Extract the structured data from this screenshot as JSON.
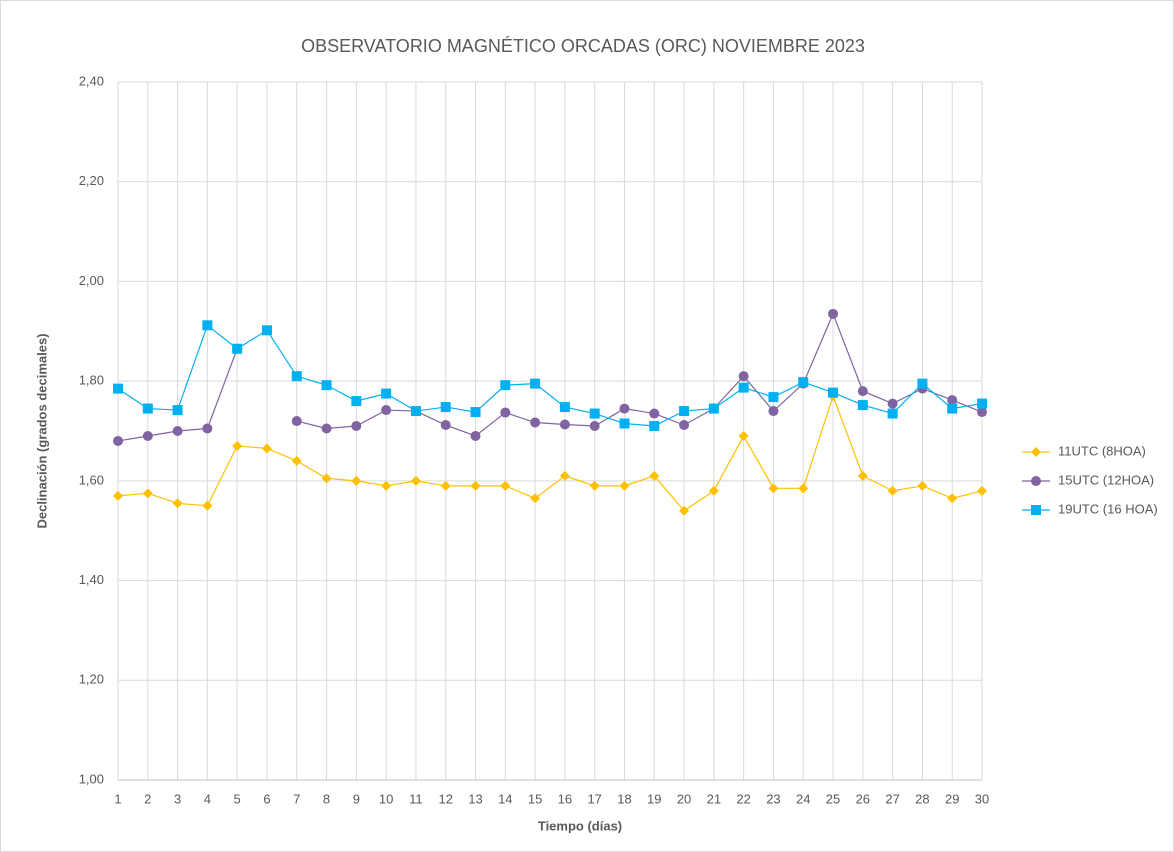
{
  "chart_data": {
    "type": "line",
    "title": "OBSERVATORIO MAGNÉTICO ORCADAS (ORC) NOVIEMBRE 2023",
    "x_label": "Tiempo (días)",
    "y_label": "Declinación (grados decimales)",
    "x": [
      1,
      2,
      3,
      4,
      5,
      6,
      7,
      8,
      9,
      10,
      11,
      12,
      13,
      14,
      15,
      16,
      17,
      18,
      19,
      20,
      21,
      22,
      23,
      24,
      25,
      26,
      27,
      28,
      29,
      30
    ],
    "xlim": [
      1,
      30
    ],
    "xticks": [
      1,
      2,
      3,
      4,
      5,
      6,
      7,
      8,
      9,
      10,
      11,
      12,
      13,
      14,
      15,
      16,
      17,
      18,
      19,
      20,
      21,
      22,
      23,
      24,
      25,
      26,
      27,
      28,
      29,
      30
    ],
    "ylim": [
      1.0,
      2.4
    ],
    "yticks": [
      {
        "value": 1.0,
        "label": "1,00"
      },
      {
        "value": 1.2,
        "label": "1,20"
      },
      {
        "value": 1.4,
        "label": "1,40"
      },
      {
        "value": 1.6,
        "label": "1,60"
      },
      {
        "value": 1.8,
        "label": "1,80"
      },
      {
        "value": 2.0,
        "label": "2,00"
      },
      {
        "value": 2.2,
        "label": "2,20"
      },
      {
        "value": 2.4,
        "label": "2,40"
      }
    ],
    "grid": true,
    "legend": "right",
    "series": [
      {
        "name": "11UTC (8HOA)",
        "color": "#ffc000",
        "marker": "diamond",
        "values": [
          1.57,
          1.575,
          1.555,
          1.55,
          1.67,
          1.665,
          1.64,
          1.605,
          1.6,
          1.59,
          1.6,
          1.59,
          1.59,
          1.59,
          1.565,
          1.61,
          1.59,
          1.59,
          1.61,
          1.54,
          1.58,
          1.69,
          1.585,
          1.585,
          1.77,
          1.61,
          1.58,
          1.59,
          1.565,
          1.58
        ]
      },
      {
        "name": "15UTC (12HOA)",
        "color": "#8064a2",
        "marker": "circle",
        "values": [
          1.68,
          1.69,
          1.7,
          1.705,
          1.865,
          null,
          1.72,
          1.705,
          1.71,
          1.742,
          1.74,
          1.712,
          1.69,
          1.737,
          1.717,
          1.713,
          1.71,
          1.745,
          1.735,
          1.712,
          1.745,
          1.81,
          1.74,
          1.795,
          1.935,
          1.78,
          1.755,
          1.785,
          1.762,
          1.738
        ]
      },
      {
        "name": "19UTC (16 HOA)",
        "color": "#00b0f0",
        "marker": "square",
        "values": [
          1.785,
          1.745,
          1.742,
          1.912,
          1.865,
          1.902,
          1.81,
          1.792,
          1.76,
          1.775,
          1.74,
          1.748,
          1.738,
          1.792,
          1.795,
          1.748,
          1.735,
          1.715,
          1.71,
          1.74,
          1.745,
          1.787,
          1.768,
          1.798,
          1.777,
          1.752,
          1.735,
          1.795,
          1.745,
          1.755
        ]
      }
    ]
  }
}
